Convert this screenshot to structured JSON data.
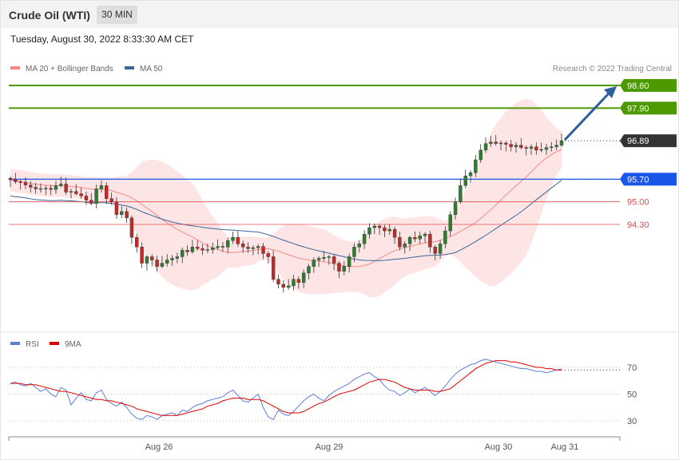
{
  "header": {
    "title": "Crude Oil (WTI)",
    "timeframe": "30 MIN"
  },
  "datetime": "Tuesday, August 30, 2022 8:33:30 AM CET",
  "legend": {
    "main": [
      {
        "label": "MA 20 + Bollinger Bands",
        "color": "#f28b82"
      },
      {
        "label": "MA 50",
        "color": "#3a6598"
      }
    ],
    "rsi": [
      {
        "label": "RSI",
        "color": "#5b7fd6"
      },
      {
        "label": "9MA",
        "color": "#e00000"
      }
    ]
  },
  "credit": "Research © 2022 Trading Central",
  "colors": {
    "resistance": "#4c9a00",
    "current": "#333333",
    "pivot": "#1a56e8",
    "support": "#e44b4b",
    "band": "#fde2e2",
    "arrow": "#2f5f9e"
  },
  "chart_data": [
    {
      "type": "candlestick",
      "ylim": [
        92.0,
        100.3
      ],
      "x_ticks": [
        "Aug 26",
        "Aug 29",
        "Aug 30",
        "Aug 31"
      ],
      "levels": [
        {
          "value": 98.6,
          "label": "98.60",
          "kind": "resistance"
        },
        {
          "value": 97.9,
          "label": "97.90",
          "kind": "resistance"
        },
        {
          "value": 96.89,
          "label": "96.89",
          "kind": "current"
        },
        {
          "value": 95.7,
          "label": "95.70",
          "kind": "pivot"
        },
        {
          "value": 95.0,
          "label": "95.00",
          "kind": "support"
        },
        {
          "value": 94.3,
          "label": "94.30",
          "kind": "support"
        }
      ],
      "closes": [
        95.68,
        95.62,
        95.6,
        95.52,
        95.45,
        95.4,
        95.41,
        95.42,
        95.38,
        95.5,
        95.55,
        95.3,
        95.32,
        95.25,
        95.18,
        95.05,
        94.95,
        95.4,
        95.5,
        95.1,
        95.0,
        94.6,
        94.7,
        94.5,
        93.9,
        93.6,
        93.1,
        93.3,
        93.2,
        93.0,
        93.1,
        93.2,
        93.25,
        93.3,
        93.5,
        93.45,
        93.6,
        93.55,
        93.5,
        93.52,
        93.58,
        93.62,
        93.6,
        93.8,
        93.9,
        93.7,
        93.6,
        93.55,
        93.58,
        93.62,
        93.4,
        93.3,
        92.6,
        92.45,
        92.35,
        92.4,
        92.6,
        92.5,
        92.8,
        93.0,
        93.2,
        93.25,
        93.28,
        93.3,
        93.1,
        92.85,
        93.0,
        93.3,
        93.6,
        93.7,
        94.0,
        94.2,
        94.25,
        94.2,
        94.1,
        94.15,
        93.9,
        93.6,
        93.7,
        93.9,
        93.85,
        93.95,
        94.0,
        93.6,
        93.4,
        93.7,
        94.1,
        94.6,
        95.0,
        95.5,
        95.8,
        95.9,
        96.3,
        96.6,
        96.8,
        96.85,
        96.8,
        96.82,
        96.78,
        96.7,
        96.75,
        96.68,
        96.65,
        96.7,
        96.6,
        96.62,
        96.68,
        96.7,
        96.75,
        96.89
      ],
      "ma50_end": 95.7
    },
    {
      "type": "line",
      "ylabel_ticks": [
        70,
        50,
        30
      ],
      "ylim": [
        20,
        80
      ],
      "series": [
        {
          "name": "RSI",
          "values": [
            58,
            59,
            57,
            56,
            58,
            55,
            52,
            54,
            50,
            48,
            55,
            53,
            42,
            47,
            51,
            46,
            45,
            51,
            53,
            46,
            43,
            41,
            44,
            40,
            35,
            32,
            31,
            34,
            33,
            31,
            34,
            35,
            36,
            34,
            38,
            37,
            40,
            42,
            43,
            45,
            46,
            47,
            48,
            51,
            53,
            49,
            45,
            44,
            47,
            50,
            40,
            33,
            31,
            38,
            35,
            34,
            37,
            41,
            45,
            48,
            50,
            47,
            45,
            49,
            52,
            54,
            56,
            58,
            61,
            63,
            65,
            66,
            63,
            61,
            56,
            53,
            52,
            49,
            51,
            54,
            51,
            53,
            55,
            52,
            49,
            52,
            56,
            61,
            65,
            68,
            70,
            72,
            73,
            75,
            76,
            75,
            74,
            73,
            72,
            71,
            70,
            69,
            69,
            68,
            67,
            67,
            66,
            67,
            68,
            69
          ]
        },
        {
          "name": "9MA",
          "values": [
            58,
            58,
            58,
            57,
            57,
            57,
            56,
            55,
            54,
            53,
            52,
            52,
            51,
            50,
            49,
            48,
            47,
            46,
            46,
            45,
            45,
            44,
            43,
            42,
            41,
            39,
            38,
            37,
            36,
            35,
            34,
            34,
            34,
            34,
            35,
            36,
            37,
            38,
            39,
            41,
            42,
            43,
            45,
            46,
            47,
            47,
            47,
            46,
            46,
            46,
            45,
            43,
            41,
            39,
            37,
            36,
            36,
            36,
            37,
            39,
            41,
            43,
            44,
            46,
            48,
            50,
            51,
            52,
            53,
            55,
            57,
            59,
            60,
            61,
            61,
            60,
            59,
            57,
            55,
            54,
            53,
            53,
            53,
            53,
            52,
            52,
            53,
            54,
            57,
            60,
            63,
            66,
            69,
            71,
            73,
            74,
            75,
            75,
            75,
            74,
            74,
            73,
            72,
            71,
            70,
            70,
            69,
            69,
            68,
            68
          ]
        }
      ]
    }
  ]
}
